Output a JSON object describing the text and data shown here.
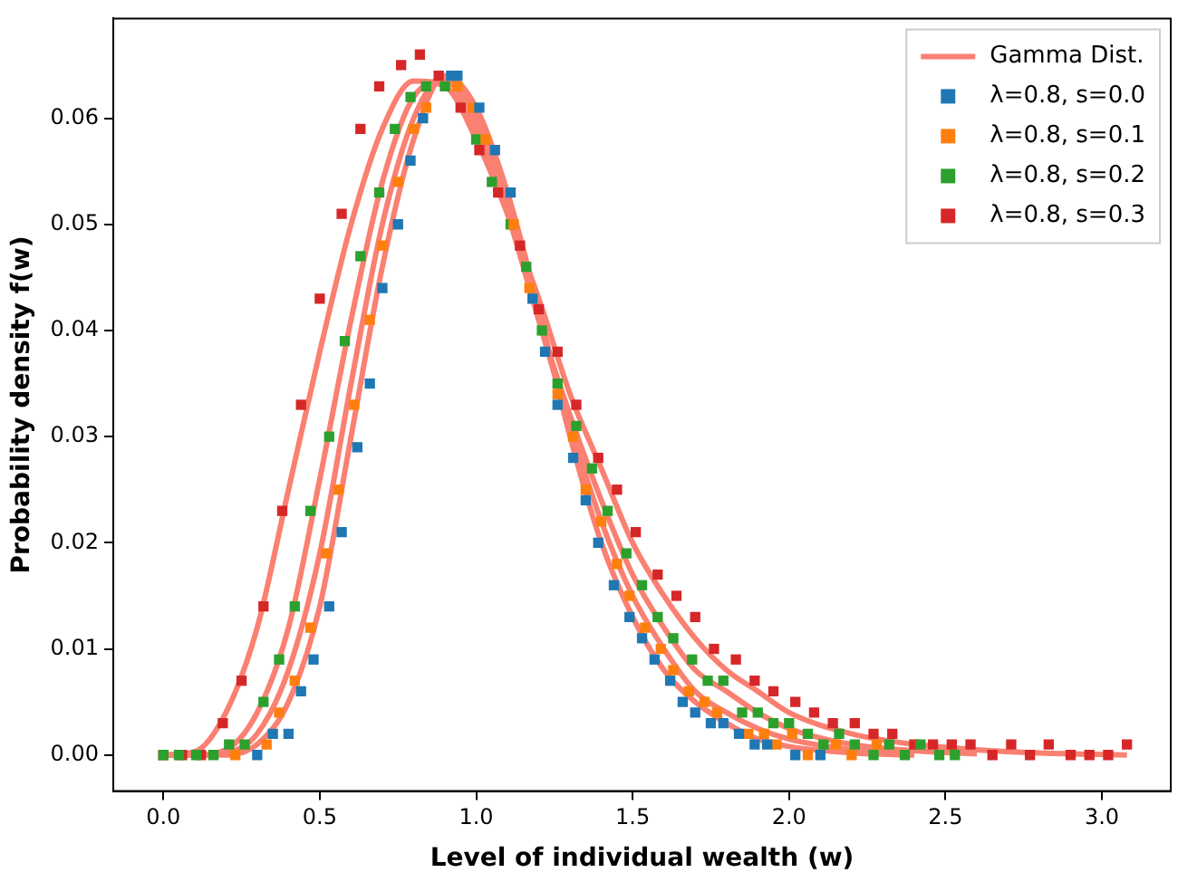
{
  "chart_data": {
    "type": "scatter",
    "xlabel": "Level of individual wealth (w)",
    "ylabel": "Probability density f(w)",
    "xlim": [
      -0.16,
      3.22
    ],
    "ylim": [
      -0.0034,
      0.0694
    ],
    "xticks": [
      {
        "value": 0,
        "label": "0.0"
      },
      {
        "value": 0.5,
        "label": "0.5"
      },
      {
        "value": 1,
        "label": "1.0"
      },
      {
        "value": 1.5,
        "label": "1.5"
      },
      {
        "value": 2,
        "label": "2.0"
      },
      {
        "value": 2.5,
        "label": "2.5"
      },
      {
        "value": 3,
        "label": "3.0"
      }
    ],
    "yticks": [
      {
        "value": 0,
        "label": "0.00"
      },
      {
        "value": 0.01,
        "label": "0.01"
      },
      {
        "value": 0.02,
        "label": "0.02"
      },
      {
        "value": 0.03,
        "label": "0.03"
      },
      {
        "value": 0.04,
        "label": "0.04"
      },
      {
        "value": 0.05,
        "label": "0.05"
      },
      {
        "value": 0.06,
        "label": "0.06"
      }
    ],
    "grid": false,
    "legend": "top right",
    "marker": "square",
    "series": [
      {
        "name": "Gamma Dist.",
        "type": "line",
        "marker": "none",
        "color": "#fa8072",
        "x": [
          0,
          0.1,
          0.2,
          0.3,
          0.4,
          0.5,
          0.6,
          0.7,
          0.8,
          0.9,
          1.0,
          1.1,
          1.2,
          1.3,
          1.4,
          1.5,
          1.6,
          1.7,
          1.8,
          1.9,
          2.0,
          2.2,
          2.4
        ],
        "values": [
          0,
          0,
          0,
          0.001,
          0.005,
          0.014,
          0.03,
          0.046,
          0.058,
          0.064,
          0.061,
          0.053,
          0.042,
          0.03,
          0.02,
          0.013,
          0.008,
          0.005,
          0.003,
          0.0015,
          0.0008,
          0.0002,
          0
        ]
      },
      {
        "type": "line",
        "marker": "none",
        "color": "#fa8072",
        "x": [
          0,
          0.1,
          0.2,
          0.3,
          0.4,
          0.5,
          0.6,
          0.7,
          0.8,
          0.9,
          1.0,
          1.1,
          1.2,
          1.3,
          1.4,
          1.5,
          1.6,
          1.7,
          1.8,
          1.9,
          2.0,
          2.2,
          2.4
        ],
        "values": [
          0,
          0,
          0.0002,
          0.002,
          0.008,
          0.019,
          0.035,
          0.05,
          0.06,
          0.064,
          0.06,
          0.052,
          0.041,
          0.031,
          0.022,
          0.015,
          0.01,
          0.006,
          0.004,
          0.0025,
          0.0015,
          0.0005,
          0.0001
        ]
      },
      {
        "type": "line",
        "marker": "none",
        "color": "#fa8072",
        "x": [
          0,
          0.1,
          0.2,
          0.3,
          0.4,
          0.5,
          0.6,
          0.7,
          0.8,
          0.9,
          1.0,
          1.1,
          1.2,
          1.3,
          1.4,
          1.5,
          1.6,
          1.7,
          1.8,
          1.9,
          2.0,
          2.2,
          2.4,
          2.6
        ],
        "values": [
          0,
          0,
          0.0005,
          0.004,
          0.012,
          0.026,
          0.041,
          0.054,
          0.062,
          0.0635,
          0.059,
          0.051,
          0.041,
          0.032,
          0.024,
          0.017,
          0.012,
          0.008,
          0.006,
          0.004,
          0.0025,
          0.001,
          0.0004,
          0.0001
        ]
      },
      {
        "type": "line",
        "marker": "none",
        "color": "#fa8072",
        "x": [
          0,
          0.1,
          0.2,
          0.3,
          0.4,
          0.5,
          0.6,
          0.7,
          0.8,
          0.9,
          1.0,
          1.1,
          1.2,
          1.3,
          1.4,
          1.5,
          1.6,
          1.7,
          1.8,
          1.9,
          2.0,
          2.2,
          2.4,
          2.6,
          2.8,
          3.08
        ],
        "values": [
          0,
          0.0003,
          0.004,
          0.012,
          0.025,
          0.038,
          0.05,
          0.059,
          0.0635,
          0.063,
          0.058,
          0.051,
          0.043,
          0.034,
          0.027,
          0.02,
          0.015,
          0.011,
          0.008,
          0.006,
          0.004,
          0.002,
          0.001,
          0.0005,
          0.0002,
          0
        ]
      },
      {
        "name": "λ=0.8, s=0.0",
        "color": "#1f77b4",
        "x": [
          0.3,
          0.35,
          0.4,
          0.44,
          0.48,
          0.53,
          0.57,
          0.62,
          0.66,
          0.7,
          0.75,
          0.79,
          0.83,
          0.92,
          0.94,
          1.01,
          1.06,
          1.11,
          1.18,
          1.22,
          1.26,
          1.31,
          1.35,
          1.39,
          1.44,
          1.49,
          1.53,
          1.57,
          1.62,
          1.66,
          1.7,
          1.75,
          1.79,
          1.84,
          1.89,
          1.93,
          2.02,
          2.1
        ],
        "values": [
          0,
          0.002,
          0.002,
          0.006,
          0.009,
          0.014,
          0.021,
          0.029,
          0.035,
          0.044,
          0.05,
          0.056,
          0.06,
          0.064,
          0.064,
          0.061,
          0.057,
          0.053,
          0.043,
          0.038,
          0.033,
          0.028,
          0.024,
          0.02,
          0.016,
          0.013,
          0.011,
          0.009,
          0.007,
          0.005,
          0.004,
          0.003,
          0.003,
          0.002,
          0.001,
          0.001,
          0,
          0
        ]
      },
      {
        "name": "λ=0.8, s=0.1",
        "color": "#ff7f0e",
        "x": [
          0.23,
          0.33,
          0.37,
          0.42,
          0.47,
          0.52,
          0.56,
          0.61,
          0.66,
          0.7,
          0.75,
          0.8,
          0.84,
          0.94,
          0.99,
          1.03,
          1.12,
          1.17,
          1.26,
          1.31,
          1.35,
          1.4,
          1.45,
          1.49,
          1.54,
          1.59,
          1.63,
          1.68,
          1.73,
          1.77,
          1.87,
          1.92,
          1.96,
          2.01,
          2.06,
          2.15,
          2.2,
          2.28
        ],
        "values": [
          0,
          0.001,
          0.004,
          0.007,
          0.012,
          0.019,
          0.025,
          0.033,
          0.041,
          0.048,
          0.054,
          0.059,
          0.061,
          0.063,
          0.061,
          0.058,
          0.05,
          0.044,
          0.034,
          0.03,
          0.025,
          0.022,
          0.018,
          0.015,
          0.012,
          0.01,
          0.008,
          0.006,
          0.005,
          0.004,
          0.002,
          0.002,
          0.001,
          0.002,
          0,
          0.001,
          0,
          0.001
        ]
      },
      {
        "name": "λ=0.8, s=0.2",
        "color": "#2ca02c",
        "x": [
          0,
          0.05,
          0.105,
          0.16,
          0.21,
          0.26,
          0.32,
          0.37,
          0.42,
          0.47,
          0.53,
          0.58,
          0.63,
          0.69,
          0.74,
          0.79,
          0.84,
          0.9,
          1.0,
          1.05,
          1.11,
          1.16,
          1.21,
          1.26,
          1.32,
          1.37,
          1.42,
          1.48,
          1.53,
          1.58,
          1.63,
          1.69,
          1.74,
          1.79,
          1.85,
          1.9,
          1.95,
          2.0,
          2.06,
          2.11,
          2.16,
          2.21,
          2.27,
          2.32,
          2.37,
          2.42,
          2.48,
          2.53
        ],
        "values": [
          0,
          0,
          0,
          0,
          0.001,
          0.001,
          0.005,
          0.009,
          0.014,
          0.023,
          0.03,
          0.039,
          0.047,
          0.053,
          0.059,
          0.062,
          0.063,
          0.063,
          0.058,
          0.054,
          0.05,
          0.046,
          0.04,
          0.035,
          0.031,
          0.027,
          0.023,
          0.019,
          0.016,
          0.013,
          0.011,
          0.009,
          0.007,
          0.007,
          0.004,
          0.004,
          0.003,
          0.003,
          0.002,
          0.001,
          0.002,
          0.001,
          0,
          0.001,
          0,
          0.001,
          0,
          0
        ]
      },
      {
        "name": "λ=0.8, s=0.3",
        "color": "#d62728",
        "x": [
          0,
          0.06,
          0.12,
          0.19,
          0.25,
          0.32,
          0.38,
          0.44,
          0.5,
          0.57,
          0.63,
          0.69,
          0.76,
          0.82,
          0.88,
          0.95,
          1.01,
          1.07,
          1.14,
          1.2,
          1.26,
          1.32,
          1.39,
          1.45,
          1.51,
          1.58,
          1.64,
          1.7,
          1.76,
          1.83,
          1.89,
          1.95,
          2.02,
          2.08,
          2.14,
          2.21,
          2.27,
          2.33,
          2.4,
          2.46,
          2.52,
          2.58,
          2.65,
          2.71,
          2.77,
          2.83,
          2.9,
          2.96,
          3.02,
          3.08
        ],
        "values": [
          0,
          0,
          0,
          0.003,
          0.007,
          0.014,
          0.023,
          0.033,
          0.043,
          0.051,
          0.059,
          0.063,
          0.065,
          0.066,
          0.064,
          0.061,
          0.057,
          0.053,
          0.048,
          0.042,
          0.038,
          0.033,
          0.028,
          0.025,
          0.021,
          0.017,
          0.015,
          0.013,
          0.01,
          0.009,
          0.007,
          0.006,
          0.005,
          0.004,
          0.003,
          0.003,
          0.002,
          0.002,
          0.001,
          0.001,
          0.001,
          0.001,
          0,
          0.001,
          0,
          0.001,
          0,
          0,
          0,
          0.001
        ]
      }
    ]
  }
}
